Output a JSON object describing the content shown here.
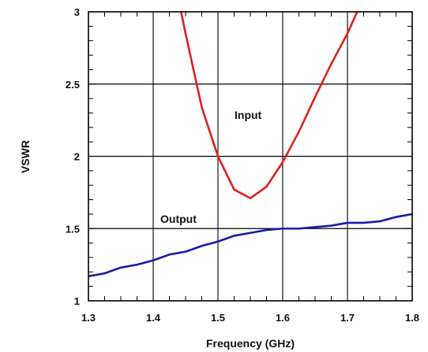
{
  "chart_data": {
    "type": "line",
    "xlabel": "Frequency (GHz)",
    "ylabel": "VSWR",
    "xlim": [
      1.3,
      1.8
    ],
    "ylim": [
      1,
      3
    ],
    "x_ticks": [
      "1.3",
      "1.4",
      "1.5",
      "1.6",
      "1.7",
      "1.8"
    ],
    "y_ticks": [
      "1",
      "1.5",
      "2",
      "2.5",
      "3"
    ],
    "x_minor_step": 0.025,
    "y_minor_step": 0.1,
    "grid": true,
    "series": [
      {
        "name": "Input",
        "color": "#dd1f1f",
        "x": [
          1.443,
          1.45,
          1.475,
          1.5,
          1.525,
          1.55,
          1.575,
          1.6,
          1.625,
          1.65,
          1.675,
          1.7,
          1.715
        ],
        "y": [
          3.0,
          2.85,
          2.34,
          2.0,
          1.77,
          1.71,
          1.79,
          1.96,
          2.17,
          2.41,
          2.64,
          2.85,
          3.0
        ]
      },
      {
        "name": "Output",
        "color": "#1a1aaa",
        "x": [
          1.3,
          1.325,
          1.35,
          1.375,
          1.4,
          1.425,
          1.45,
          1.475,
          1.5,
          1.525,
          1.55,
          1.575,
          1.6,
          1.625,
          1.65,
          1.675,
          1.7,
          1.725,
          1.75,
          1.775,
          1.8
        ],
        "y": [
          1.17,
          1.19,
          1.23,
          1.25,
          1.28,
          1.32,
          1.34,
          1.38,
          1.41,
          1.45,
          1.47,
          1.49,
          1.5,
          1.5,
          1.51,
          1.52,
          1.54,
          1.54,
          1.55,
          1.58,
          1.6
        ]
      }
    ]
  }
}
